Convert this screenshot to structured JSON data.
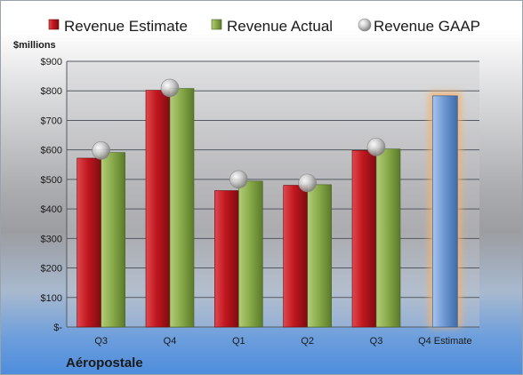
{
  "chart_data": {
    "type": "bar",
    "company": "Aéropostale",
    "ylabel": "$millions",
    "ylim": [
      0,
      900
    ],
    "y_ticks": [
      {
        "value": 0,
        "label": "$-"
      },
      {
        "value": 100,
        "label": "$100"
      },
      {
        "value": 200,
        "label": "$200"
      },
      {
        "value": 300,
        "label": "$300"
      },
      {
        "value": 400,
        "label": "$400"
      },
      {
        "value": 500,
        "label": "$500"
      },
      {
        "value": 600,
        "label": "$600"
      },
      {
        "value": 700,
        "label": "$700"
      },
      {
        "value": 800,
        "label": "$800"
      },
      {
        "value": 900,
        "label": "$900"
      }
    ],
    "categories": [
      "Q3",
      "Q4",
      "Q1",
      "Q2",
      "Q3",
      "Q4 Estimate"
    ],
    "series": [
      {
        "name": "Revenue Estimate",
        "kind": "bar",
        "color": "#c0161e",
        "values": [
          572,
          802,
          462,
          480,
          598,
          null
        ]
      },
      {
        "name": "Revenue Actual",
        "kind": "bar",
        "color": "#8bac4b",
        "values": [
          591,
          808,
          494,
          482,
          603,
          null
        ]
      },
      {
        "name": "Revenue GAAP",
        "kind": "marker",
        "color": "#b8b8b8",
        "values": [
          598,
          810,
          500,
          488,
          610,
          null
        ]
      },
      {
        "name": "Q4 Estimate",
        "kind": "bar",
        "color": "#6f9ad6",
        "highlight": "#f6b26b",
        "values": [
          null,
          null,
          null,
          null,
          null,
          783
        ]
      }
    ],
    "grid": true,
    "legend_position": "top"
  }
}
